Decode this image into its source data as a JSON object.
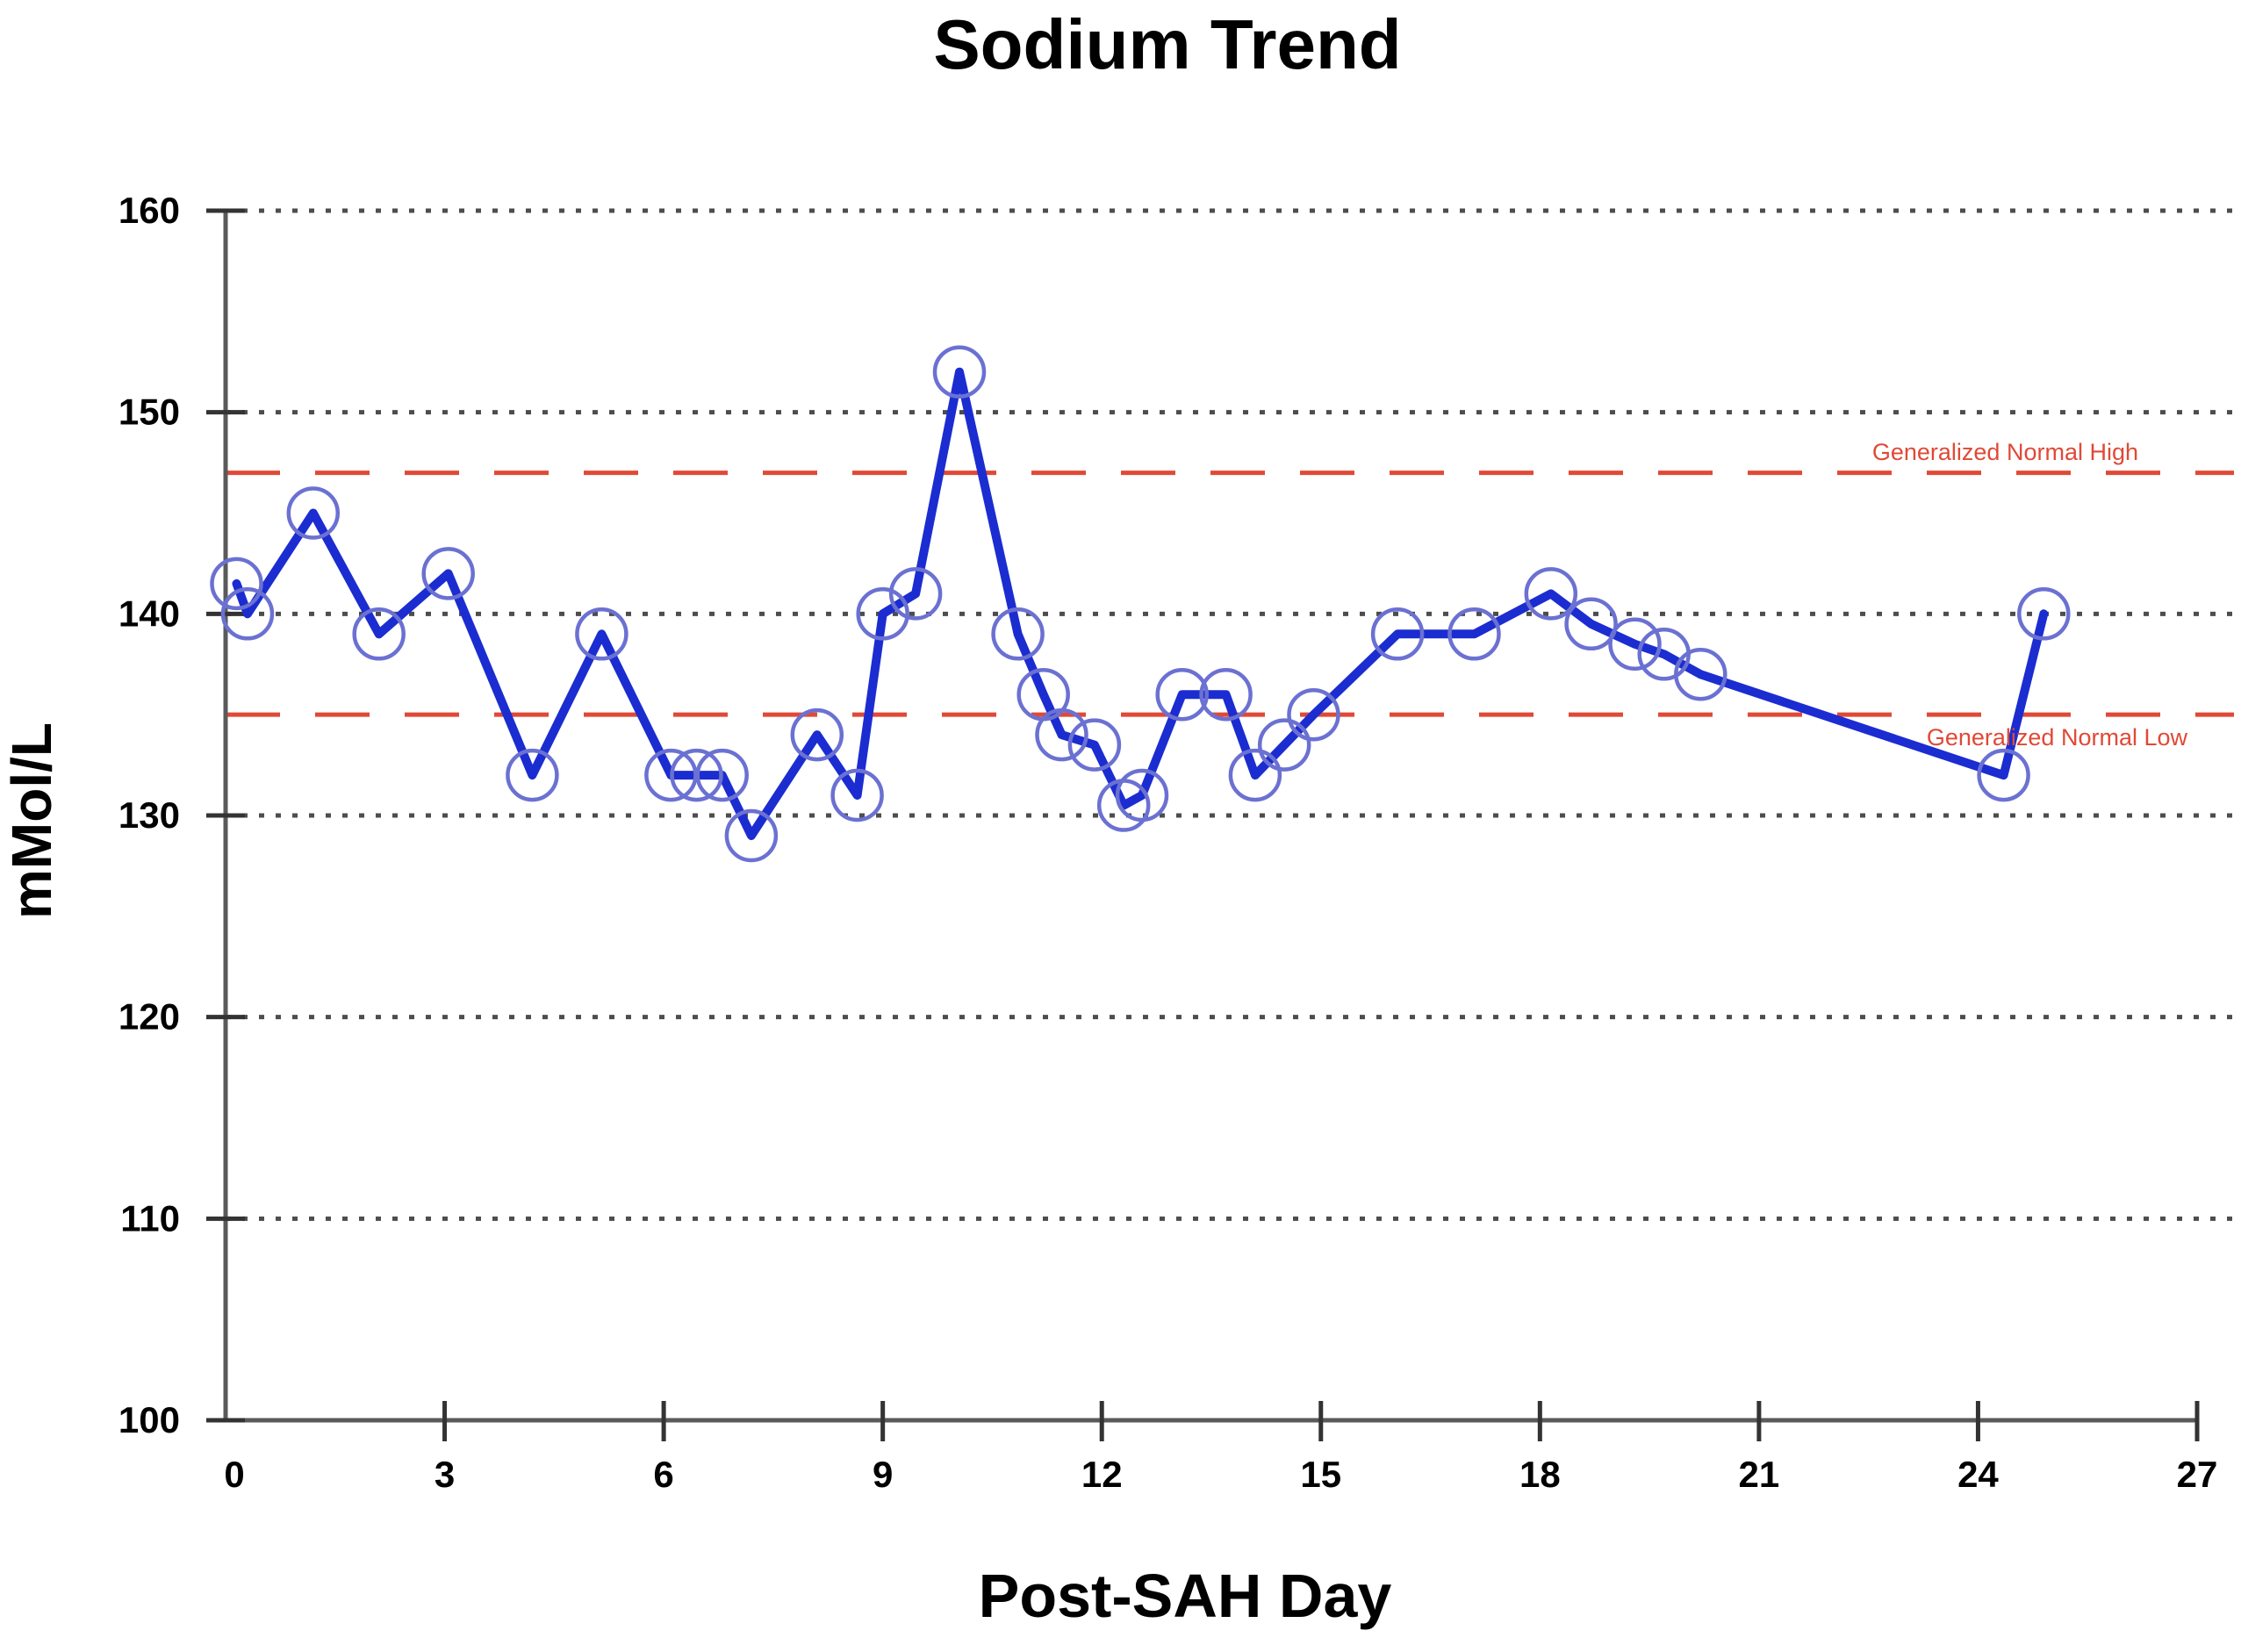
{
  "title": "Sodium Trend",
  "x_axis": {
    "label": "Post-SAH Day",
    "min": 0,
    "max": 27,
    "ticks": [
      0,
      3,
      6,
      9,
      12,
      15,
      18,
      21,
      24,
      27
    ]
  },
  "y_axis": {
    "label": "mMol/L",
    "min": 100,
    "max": 160,
    "ticks": [
      100,
      110,
      120,
      130,
      140,
      150,
      160
    ]
  },
  "reference_lines": [
    {
      "value": 147,
      "label": "Generalized Normal High",
      "color": "#e04936"
    },
    {
      "value": 135,
      "label": "Generalized Normal Low",
      "color": "#e04936"
    }
  ],
  "chart_data": {
    "type": "line",
    "title": "Sodium Trend",
    "xlabel": "Post-SAH Day",
    "ylabel": "mMol/L",
    "xlim": [
      0,
      27
    ],
    "ylim": [
      100,
      160
    ],
    "grid": "horizontal-dotted",
    "legend_position": "none",
    "series": [
      {
        "name": "Sodium",
        "x": [
          0.15,
          0.3,
          1.2,
          2.1,
          3.05,
          4.2,
          5.15,
          6.1,
          6.45,
          6.8,
          7.2,
          8.1,
          8.65,
          9.0,
          9.45,
          10.05,
          10.85,
          11.2,
          11.45,
          11.9,
          12.3,
          12.55,
          13.1,
          13.7,
          14.1,
          14.5,
          14.9,
          16.05,
          17.1,
          18.15,
          18.7,
          19.3,
          19.7,
          20.2,
          24.35,
          24.9
        ],
        "y": [
          141.5,
          140,
          145,
          139,
          142,
          132,
          139,
          132,
          132,
          132,
          129,
          134,
          131,
          140,
          141,
          152,
          139,
          136,
          134,
          133.5,
          130.5,
          131,
          136,
          136,
          132,
          133.5,
          135,
          139,
          139,
          141,
          139.5,
          138.5,
          138,
          137,
          132,
          140
        ]
      }
    ]
  },
  "colors": {
    "line": "#1b2dd0",
    "marker": "#6b71d2",
    "grid": "#4d4d4d",
    "axis": "#5a5a5a",
    "reference": "#e04936",
    "text": "#000000"
  }
}
